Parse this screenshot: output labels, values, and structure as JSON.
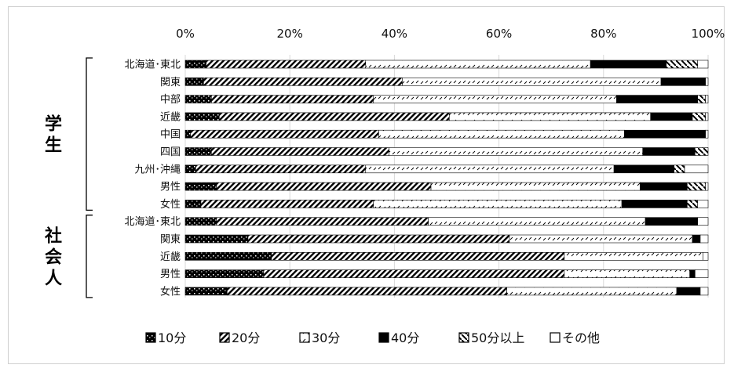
{
  "chart_data": {
    "type": "bar",
    "orientation": "horizontal",
    "stacked": true,
    "normalized": true,
    "xlim": [
      0,
      100
    ],
    "xticks": [
      "0%",
      "20%",
      "40%",
      "60%",
      "80%",
      "100%"
    ],
    "legend_position": "bottom",
    "groups": [
      {
        "label": "学生",
        "start": 0,
        "end": 8
      },
      {
        "label": "社会人",
        "start": 9,
        "end": 13
      }
    ],
    "categories": [
      "北海道･東北",
      "関東",
      "中部",
      "近畿",
      "中国",
      "四国",
      "九州･沖縄",
      "男性",
      "女性",
      "北海道･東北",
      "関東",
      "近畿",
      "男性",
      "女性"
    ],
    "series": [
      {
        "name": "10分",
        "pattern": "dots",
        "values": [
          4,
          3.5,
          5,
          6.5,
          1,
          5,
          2,
          6,
          3,
          6,
          12,
          16.5,
          15,
          8
        ]
      },
      {
        "name": "20分",
        "pattern": "hatch",
        "values": [
          30.5,
          38,
          31,
          44,
          36,
          34,
          32.5,
          41,
          33,
          40.5,
          50,
          56,
          57.5,
          53.5
        ]
      },
      {
        "name": "30分",
        "pattern": "dash",
        "values": [
          43,
          49.5,
          46.5,
          38.5,
          47,
          48.5,
          47.5,
          40,
          47.5,
          41.5,
          35,
          26.5,
          24,
          32.5
        ]
      },
      {
        "name": "40分",
        "pattern": "solid",
        "values": [
          14.5,
          8.5,
          15.5,
          8,
          15.5,
          10,
          11.5,
          9,
          12.5,
          10,
          1.5,
          0,
          1,
          4.5
        ]
      },
      {
        "name": "50分以上",
        "pattern": "diag",
        "values": [
          6,
          0,
          1.5,
          2.5,
          0,
          2.5,
          2,
          3.5,
          2,
          0,
          0,
          0,
          0,
          0
        ]
      },
      {
        "name": "その他",
        "pattern": "white",
        "values": [
          2,
          0.5,
          0.5,
          0.5,
          0.5,
          0,
          4.5,
          0.5,
          2,
          2,
          1.5,
          1,
          2.5,
          1.5
        ]
      }
    ]
  }
}
